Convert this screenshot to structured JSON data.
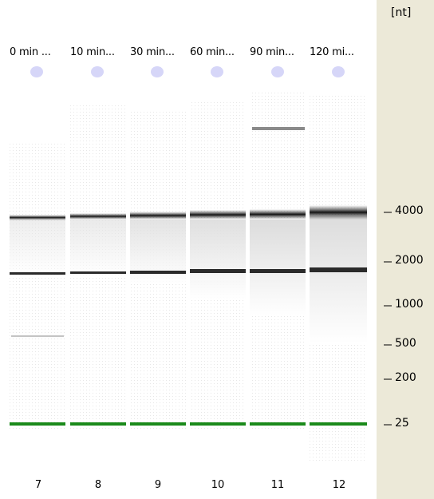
{
  "gel": {
    "unit_label": "[nt]",
    "lanes": [
      {
        "title": "0 min ...",
        "number": "7"
      },
      {
        "title": "10 min...",
        "number": "8"
      },
      {
        "title": "30 min...",
        "number": "9"
      },
      {
        "title": "60 min...",
        "number": "10"
      },
      {
        "title": "90 min...",
        "number": "11"
      },
      {
        "title": "120 mi...",
        "number": "12"
      }
    ],
    "ladder": [
      "4000",
      "2000",
      "1000",
      "500",
      "200",
      "25"
    ],
    "colors": {
      "panel": "#ece9d8",
      "marker": "#1a8a1a",
      "well": "#d6d6f8",
      "band": "#111111"
    }
  }
}
